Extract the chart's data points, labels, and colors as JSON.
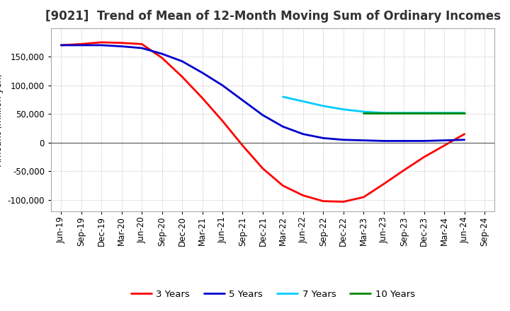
{
  "title": "[9021]  Trend of Mean of 12-Month Moving Sum of Ordinary Incomes",
  "background_color": "#ffffff",
  "plot_bg_color": "#ffffff",
  "grid_color": "#aaaaaa",
  "series": {
    "3yr": {
      "label": "3 Years",
      "color": "#ff0000",
      "x": [
        0,
        1,
        2,
        3,
        4,
        5,
        6,
        7,
        8,
        9,
        10,
        11,
        12,
        13,
        14,
        15,
        16,
        17,
        18,
        19,
        20
      ],
      "y": [
        170000,
        172000,
        175000,
        174000,
        172000,
        148000,
        115000,
        78000,
        38000,
        -5000,
        -45000,
        -75000,
        -92000,
        -102000,
        -103000,
        -95000,
        -72000,
        -48000,
        -25000,
        -5000,
        15000
      ]
    },
    "5yr": {
      "label": "5 Years",
      "color": "#0000cc",
      "x": [
        0,
        1,
        2,
        3,
        4,
        5,
        6,
        7,
        8,
        9,
        10,
        11,
        12,
        13,
        14,
        15,
        16,
        17,
        18,
        19,
        20
      ],
      "y": [
        170000,
        170000,
        170000,
        168000,
        165000,
        155000,
        142000,
        122000,
        100000,
        74000,
        48000,
        28000,
        15000,
        8000,
        5000,
        4000,
        3000,
        3000,
        3000,
        4000,
        5000
      ]
    },
    "7yr": {
      "label": "7 Years",
      "color": "#00ccff",
      "x": [
        11,
        12,
        13,
        14,
        15,
        16,
        17,
        18,
        19,
        20
      ],
      "y": [
        80000,
        72000,
        64000,
        58000,
        54000,
        52000,
        52000,
        52000,
        52000,
        52000
      ]
    },
    "10yr": {
      "label": "10 Years",
      "color": "#008800",
      "x": [
        15,
        16,
        17,
        18,
        19,
        20
      ],
      "y": [
        52000,
        52000,
        52000,
        52000,
        52000,
        52000
      ]
    }
  },
  "x_labels": [
    "Jun-19",
    "Sep-19",
    "Dec-19",
    "Mar-20",
    "Jun-20",
    "Sep-20",
    "Dec-20",
    "Mar-21",
    "Jun-21",
    "Sep-21",
    "Dec-21",
    "Mar-22",
    "Jun-22",
    "Sep-22",
    "Dec-22",
    "Mar-23",
    "Jun-23",
    "Sep-23",
    "Dec-23",
    "Mar-24",
    "Jun-24",
    "Sep-24"
  ],
  "ylim": [
    -120000,
    200000
  ],
  "yticks": [
    -100000,
    -50000,
    0,
    50000,
    100000,
    150000
  ],
  "title_fontsize": 12,
  "axis_label_fontsize": 9,
  "tick_fontsize": 8.5,
  "legend_fontsize": 9.5,
  "line_width": 2.0
}
